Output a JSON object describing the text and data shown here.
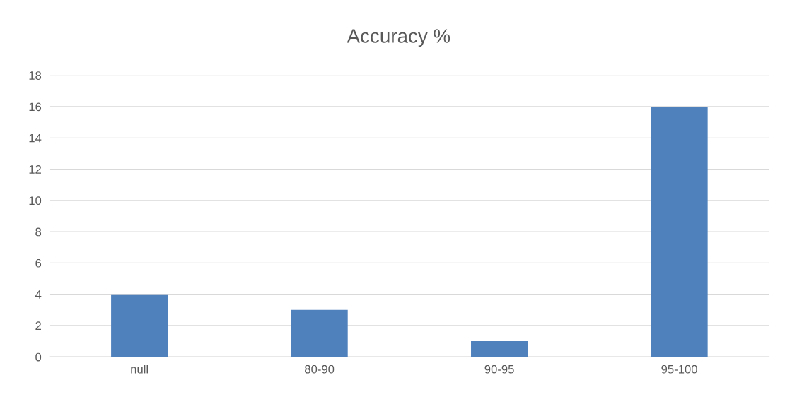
{
  "chart_data": {
    "type": "bar",
    "title": "Accuracy %",
    "categories": [
      "null",
      "80-90",
      "90-95",
      "95-100"
    ],
    "values": [
      4,
      3,
      1,
      16
    ],
    "color": "#4f81bd",
    "ylim": [
      0,
      18
    ],
    "yticks": [
      0,
      2,
      4,
      6,
      8,
      10,
      12,
      14,
      16,
      18
    ],
    "grid": "y"
  }
}
